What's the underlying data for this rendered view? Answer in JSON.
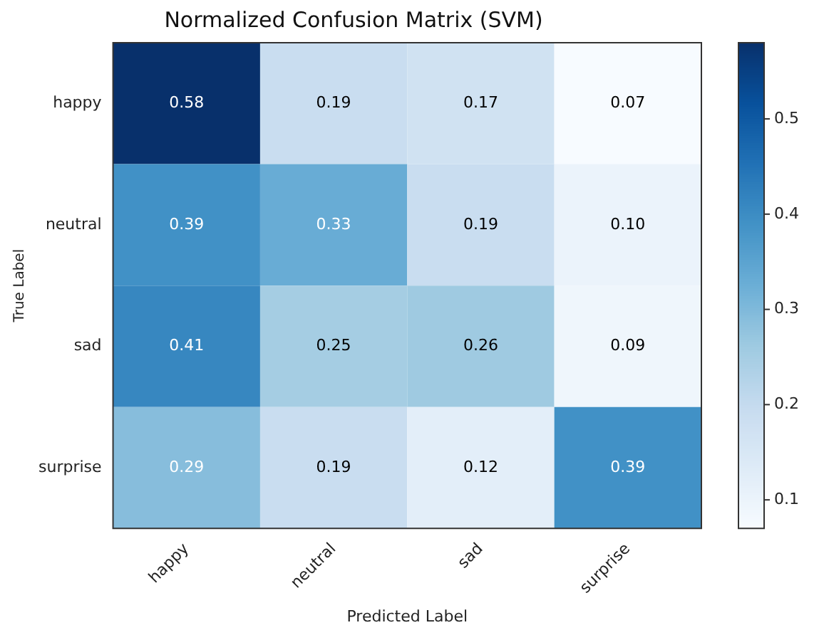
{
  "chart_data": {
    "type": "heatmap",
    "title": "Normalized Confusion Matrix (SVM)",
    "xlabel": "Predicted Label",
    "ylabel": "True Label",
    "categories": [
      "happy",
      "neutral",
      "sad",
      "surprise"
    ],
    "y_categories": [
      "happy",
      "neutral",
      "sad",
      "surprise"
    ],
    "cells": [
      [
        0.58,
        0.19,
        0.17,
        0.07
      ],
      [
        0.39,
        0.33,
        0.19,
        0.1
      ],
      [
        0.41,
        0.25,
        0.26,
        0.09
      ],
      [
        0.29,
        0.19,
        0.12,
        0.39
      ]
    ],
    "cell_labels": [
      [
        "0.58",
        "0.19",
        "0.17",
        "0.07"
      ],
      [
        "0.39",
        "0.33",
        "0.19",
        "0.10"
      ],
      [
        "0.41",
        "0.25",
        "0.26",
        "0.09"
      ],
      [
        "0.29",
        "0.19",
        "0.12",
        "0.39"
      ]
    ],
    "clim": [
      0.07,
      0.58
    ],
    "cticks": [
      0.1,
      0.2,
      0.3,
      0.4,
      0.5
    ],
    "data_labels": true
  }
}
